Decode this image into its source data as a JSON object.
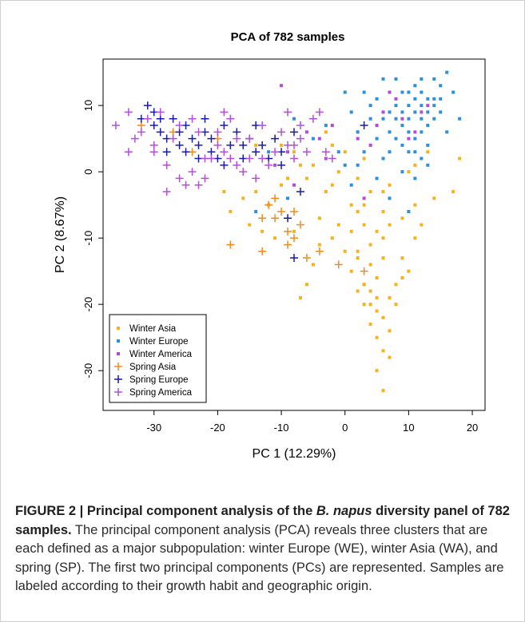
{
  "chart_data": {
    "type": "scatter",
    "title": "PCA of 782 samples",
    "xlabel": "PC 1 (12.29%)",
    "ylabel": "PC 2 (8.67%)",
    "xlim": [
      -38,
      22
    ],
    "ylim": [
      -36,
      17
    ],
    "x_ticks": [
      -30,
      -20,
      -10,
      0,
      10,
      20
    ],
    "y_ticks": [
      -30,
      -20,
      -10,
      0,
      10
    ],
    "grid": false,
    "legend_position": "bottom-left",
    "series": [
      {
        "name": "Winter Asia",
        "marker": "square",
        "color": "#F5B21E",
        "points": [
          [
            4,
            -18
          ],
          [
            5,
            -16
          ],
          [
            3,
            -20
          ],
          [
            6,
            -22
          ],
          [
            5,
            -25
          ],
          [
            7,
            -28
          ],
          [
            6,
            -33
          ],
          [
            4,
            -14
          ],
          [
            8,
            -17
          ],
          [
            2,
            -12
          ],
          [
            6,
            -10
          ],
          [
            3,
            -8
          ],
          [
            1,
            -5
          ],
          [
            4,
            -3
          ],
          [
            2,
            -1
          ],
          [
            -1,
            0
          ],
          [
            3,
            2
          ],
          [
            6,
            -6
          ],
          [
            7,
            -19
          ],
          [
            5,
            -21
          ],
          [
            4,
            -23
          ],
          [
            9,
            -16
          ],
          [
            2,
            -18
          ],
          [
            1,
            -15
          ],
          [
            3,
            -17
          ],
          [
            5,
            -19
          ],
          [
            6,
            -13
          ],
          [
            4,
            -11
          ],
          [
            7,
            -8
          ],
          [
            2,
            -6
          ],
          [
            -3,
            -3
          ],
          [
            -6,
            -1
          ],
          [
            -7,
            1
          ],
          [
            -10,
            -2
          ],
          [
            -12,
            -5
          ],
          [
            -14,
            -3
          ],
          [
            -15,
            -8
          ],
          [
            -11,
            -10
          ],
          [
            -7,
            -19
          ],
          [
            -4,
            -11
          ],
          [
            -5,
            -14
          ],
          [
            -6,
            -17
          ],
          [
            -18,
            -6
          ],
          [
            -19,
            -3
          ],
          [
            -16,
            -4
          ],
          [
            -2,
            4
          ],
          [
            0,
            3
          ],
          [
            -8,
            3
          ],
          [
            -3,
            6
          ],
          [
            11,
            -10
          ],
          [
            13,
            3
          ],
          [
            11,
            -5
          ],
          [
            17,
            -3
          ],
          [
            18,
            2
          ],
          [
            10,
            -15
          ],
          [
            9,
            -13
          ],
          [
            6,
            -27
          ],
          [
            7,
            -24
          ],
          [
            5,
            -30
          ],
          [
            3,
            -17
          ],
          [
            4,
            -20
          ],
          [
            8,
            -20
          ],
          [
            2,
            -13
          ],
          [
            1,
            -9
          ],
          [
            5,
            -9
          ],
          [
            3,
            -5
          ],
          [
            6,
            -3
          ],
          [
            -1,
            -8
          ],
          [
            0,
            -12
          ],
          [
            -2,
            -10
          ],
          [
            -4,
            -7
          ],
          [
            -8,
            -9
          ],
          [
            -13,
            -9
          ],
          [
            -9,
            -1
          ],
          [
            -10,
            4
          ],
          [
            -14,
            4
          ],
          [
            -5,
            1
          ],
          [
            -2,
            -2
          ],
          [
            7,
            -2
          ],
          [
            9,
            -7
          ],
          [
            12,
            -8
          ],
          [
            14,
            -4
          ],
          [
            10,
            0
          ],
          [
            11,
            1
          ]
        ]
      },
      {
        "name": "Winter Europe",
        "marker": "square",
        "color": "#2E8FDC",
        "points": [
          [
            12,
            10
          ],
          [
            10,
            12
          ],
          [
            14,
            8
          ],
          [
            11,
            5
          ],
          [
            9,
            7
          ],
          [
            13,
            11
          ],
          [
            15,
            13
          ],
          [
            8,
            10
          ],
          [
            10,
            3
          ],
          [
            6,
            2
          ],
          [
            5,
            5
          ],
          [
            4,
            8
          ],
          [
            8,
            14
          ],
          [
            12,
            14
          ],
          [
            16,
            15
          ],
          [
            17,
            12
          ],
          [
            7,
            6
          ],
          [
            9,
            0
          ],
          [
            11,
            -1
          ],
          [
            13,
            4
          ],
          [
            15,
            9
          ],
          [
            3,
            3
          ],
          [
            2,
            6
          ],
          [
            1,
            9
          ],
          [
            0,
            12
          ],
          [
            5,
            11
          ],
          [
            7,
            9
          ],
          [
            9,
            12
          ],
          [
            11,
            9
          ],
          [
            13,
            7
          ],
          [
            14,
            11
          ],
          [
            12,
            6
          ],
          [
            10,
            8
          ],
          [
            8,
            5
          ],
          [
            6,
            8
          ],
          [
            4,
            10
          ],
          [
            3,
            12
          ],
          [
            2,
            1
          ],
          [
            1,
            -2
          ],
          [
            0,
            1
          ],
          [
            -1,
            3
          ],
          [
            5,
            -1
          ],
          [
            7,
            -4
          ],
          [
            10,
            -6
          ],
          [
            -5,
            5
          ],
          [
            -3,
            7
          ],
          [
            -8,
            8
          ],
          [
            -12,
            3
          ],
          [
            -14,
            -6
          ],
          [
            -9,
            -4
          ],
          [
            6,
            14
          ],
          [
            14,
            14
          ],
          [
            18,
            8
          ],
          [
            16,
            6
          ],
          [
            12,
            12
          ],
          [
            9,
            9
          ],
          [
            11,
            11
          ],
          [
            13,
            9
          ],
          [
            10,
            10
          ],
          [
            8,
            8
          ],
          [
            12,
            8
          ],
          [
            14,
            10
          ],
          [
            11,
            13
          ],
          [
            15,
            11
          ],
          [
            9,
            4
          ],
          [
            7,
            3
          ],
          [
            10,
            6
          ],
          [
            12,
            2
          ],
          [
            13,
            1
          ],
          [
            11,
            3
          ]
        ]
      },
      {
        "name": "Winter America",
        "marker": "square",
        "color": "#B24CD8",
        "points": [
          [
            -10,
            13
          ],
          [
            9,
            8
          ],
          [
            11,
            6
          ],
          [
            6,
            9
          ],
          [
            13,
            10
          ],
          [
            3,
            -4
          ],
          [
            -4,
            5
          ],
          [
            -8,
            -2
          ],
          [
            2,
            5
          ],
          [
            -6,
            6
          ],
          [
            -11,
            1
          ],
          [
            8,
            11
          ],
          [
            12,
            9
          ],
          [
            5,
            7
          ],
          [
            -3,
            2
          ],
          [
            7,
            12
          ],
          [
            -9,
            3
          ],
          [
            4,
            4
          ],
          [
            10,
            5
          ],
          [
            -2,
            7
          ]
        ]
      },
      {
        "name": "Spring Asia",
        "marker": "plus",
        "color": "#F28A1E",
        "points": [
          [
            -32,
            7
          ],
          [
            -27,
            6
          ],
          [
            -24,
            3
          ],
          [
            -20,
            5
          ],
          [
            -18,
            -11
          ],
          [
            -13,
            -12
          ],
          [
            -11,
            -4
          ],
          [
            -10,
            -6
          ],
          [
            -9,
            -9
          ],
          [
            -8,
            -10
          ],
          [
            -6,
            -13
          ],
          [
            -13,
            -7
          ],
          [
            -7,
            -8
          ],
          [
            3,
            -15
          ],
          [
            -1,
            -14
          ],
          [
            -11,
            -7
          ],
          [
            -9,
            -11
          ],
          [
            -8,
            -6
          ],
          [
            -12,
            -5
          ],
          [
            -4,
            -12
          ]
        ]
      },
      {
        "name": "Spring Europe",
        "marker": "plus",
        "color": "#1A1AA8",
        "points": [
          [
            -31,
            10
          ],
          [
            -29,
            8
          ],
          [
            -26,
            6
          ],
          [
            -23,
            4
          ],
          [
            -21,
            3
          ],
          [
            -19,
            7
          ],
          [
            -16,
            4
          ],
          [
            -14,
            7
          ],
          [
            -11,
            5
          ],
          [
            -10,
            3
          ],
          [
            -8,
            6
          ],
          [
            -7,
            -3
          ],
          [
            -9,
            -7
          ],
          [
            -8,
            -13
          ],
          [
            -13,
            4
          ],
          [
            -25,
            3
          ],
          [
            -22,
            6
          ],
          [
            -28,
            5
          ],
          [
            -30,
            7
          ],
          [
            -27,
            8
          ],
          [
            -24,
            5
          ],
          [
            -20,
            2
          ],
          [
            -17,
            6
          ],
          [
            -12,
            2
          ],
          [
            -15,
            5
          ],
          [
            -18,
            4
          ],
          [
            -23,
            2
          ],
          [
            -26,
            4
          ],
          [
            -29,
            6
          ],
          [
            -21,
            5
          ],
          [
            -19,
            1
          ],
          [
            -16,
            2
          ],
          [
            -14,
            3
          ],
          [
            -10,
            1
          ],
          [
            3,
            7
          ],
          [
            -22,
            8
          ],
          [
            -25,
            7
          ],
          [
            -30,
            9
          ],
          [
            -32,
            8
          ],
          [
            -28,
            3
          ]
        ]
      },
      {
        "name": "Spring America",
        "marker": "plus",
        "color": "#B050D8",
        "points": [
          [
            -36,
            7
          ],
          [
            -34,
            9
          ],
          [
            -33,
            5
          ],
          [
            -30,
            3
          ],
          [
            -28,
            1
          ],
          [
            -26,
            -1
          ],
          [
            -24,
            0
          ],
          [
            -22,
            2
          ],
          [
            -20,
            4
          ],
          [
            -18,
            8
          ],
          [
            -19,
            9
          ],
          [
            -15,
            5
          ],
          [
            -13,
            7
          ],
          [
            -12,
            1
          ],
          [
            -10,
            6
          ],
          [
            -9,
            4
          ],
          [
            -8,
            2
          ],
          [
            -6,
            3
          ],
          [
            -5,
            8
          ],
          [
            -7,
            7
          ],
          [
            -3,
            3
          ],
          [
            -17,
            1
          ],
          [
            -22,
            -1
          ],
          [
            -25,
            -2
          ],
          [
            -30,
            4
          ],
          [
            -32,
            6
          ],
          [
            -27,
            5
          ],
          [
            -23,
            6
          ],
          [
            -21,
            2
          ],
          [
            -19,
            3
          ],
          [
            -16,
            0
          ],
          [
            -14,
            -1
          ],
          [
            -11,
            3
          ],
          [
            -8,
            4
          ],
          [
            -29,
            9
          ],
          [
            -31,
            8
          ],
          [
            -26,
            7
          ],
          [
            -24,
            8
          ],
          [
            -20,
            6
          ],
          [
            -17,
            5
          ],
          [
            -34,
            3
          ],
          [
            -28,
            -3
          ],
          [
            -23,
            -2
          ],
          [
            -13,
            2
          ],
          [
            -7,
            5
          ],
          [
            -4,
            9
          ],
          [
            -2,
            2
          ],
          [
            -9,
            9
          ],
          [
            -15,
            2
          ],
          [
            -18,
            2
          ]
        ]
      }
    ]
  },
  "caption": {
    "lead": "FIGURE 2 | Principal component analysis of the ",
    "lead_italic": "B. napus",
    "lead_rest": " diversity panel of 782 samples.",
    "body": " The principal component analysis (PCA) reveals three clusters that are each defined as a major subpopulation: winter Europe (WE), winter Asia (WA), and spring (SP). The first two principal components (PCs) are represented. Samples are labeled according to their growth habit and geographic origin."
  }
}
